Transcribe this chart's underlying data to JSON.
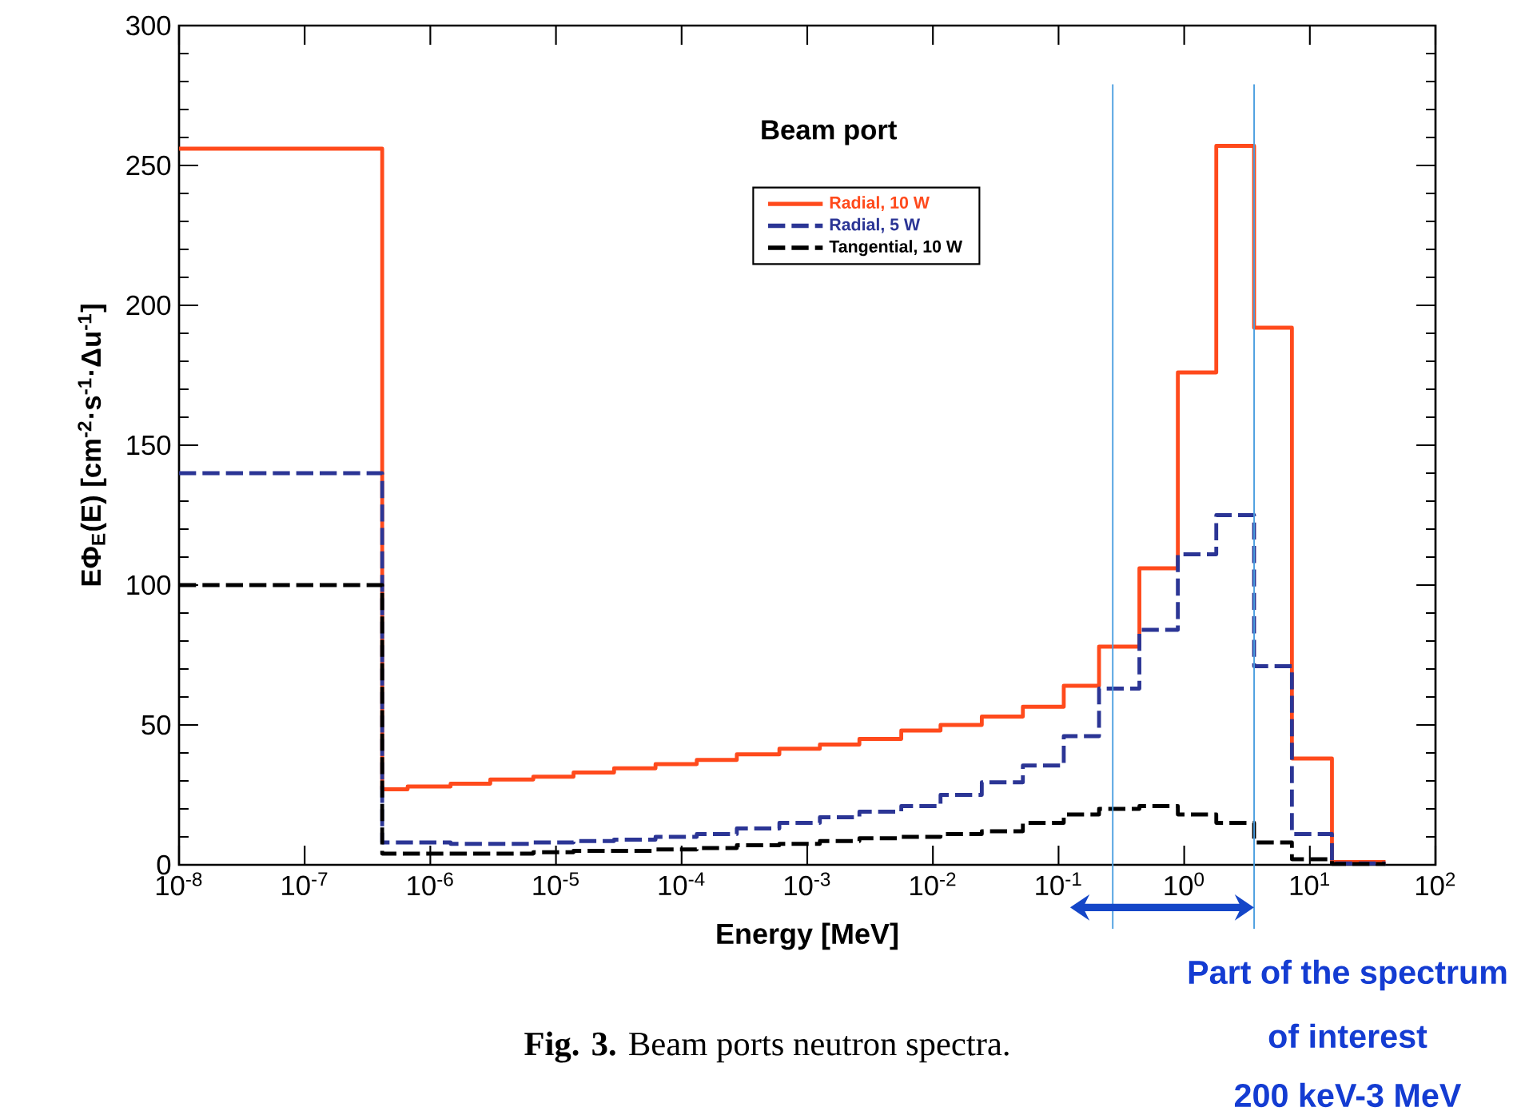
{
  "chart_data": {
    "type": "histogram",
    "xlabel": "Energy [MeV]",
    "ylabel": "EΦ$_{E}$(E) [cm$^{-2}$·s$^{-1}$·Δu$^{-1}$]",
    "legend_title": "Beam port",
    "log": "x",
    "xlim": [
      1e-08,
      100
    ],
    "xticks": [
      {
        "value": 1e-08,
        "label": "10$^{-8}$"
      },
      {
        "value": 1e-07,
        "label": "10$^{-7}$"
      },
      {
        "value": 1e-06,
        "label": "10$^{-6}$"
      },
      {
        "value": 1e-05,
        "label": "10$^{-5}$"
      },
      {
        "value": 0.0001,
        "label": "10$^{-4}$"
      },
      {
        "value": 0.001,
        "label": "10$^{-3}$"
      },
      {
        "value": 0.01,
        "label": "10$^{-2}$"
      },
      {
        "value": 0.1,
        "label": "10$^{-1}$"
      },
      {
        "value": 1,
        "label": "10$^{0}$"
      },
      {
        "value": 10,
        "label": "10$^{1}$"
      },
      {
        "value": 100,
        "label": "10$^{2}$"
      }
    ],
    "ylim": [
      0,
      300
    ],
    "yticks": [
      0,
      50,
      100,
      150,
      200,
      250,
      300
    ],
    "bins": [
      1e-08,
      4.14e-07,
      6.6e-07,
      1.45e-06,
      3e-06,
      6.6e-06,
      1.38e-05,
      2.9e-05,
      6.2e-05,
      0.000132,
      0.000275,
      0.0006,
      0.00126,
      0.0026,
      0.0056,
      0.0115,
      0.0245,
      0.052,
      0.11,
      0.21,
      0.44,
      0.89,
      1.8,
      3.6,
      7.2,
      15,
      40
    ],
    "series": [
      {
        "name": "Radial, 10 W",
        "color": "#ff4a1c",
        "line_style": "solid",
        "values": [
          256,
          27,
          28,
          29,
          30.5,
          31.5,
          33,
          34.5,
          36,
          37.5,
          39.5,
          41.5,
          43,
          45,
          48,
          50,
          53,
          56.5,
          64,
          78,
          106,
          176,
          257,
          192,
          38,
          1
        ]
      },
      {
        "name": "Radial, 5 W",
        "color": "#2b3595",
        "line_style": "dashed",
        "values": [
          140,
          8,
          8,
          7.5,
          7.5,
          8,
          8.5,
          9,
          10,
          11,
          13,
          15,
          17,
          19,
          21,
          25,
          29.5,
          35.5,
          46,
          63,
          84,
          111,
          125,
          71,
          11,
          0.5
        ]
      },
      {
        "name": "Tangential, 10 W",
        "color": "#000000",
        "line_style": "dashed",
        "values": [
          100,
          4,
          4,
          4,
          4,
          4.5,
          5,
          5,
          5.5,
          6,
          7,
          7.5,
          8.5,
          9.5,
          10,
          11,
          12,
          15,
          18,
          20,
          21,
          18,
          15,
          8,
          2,
          0.3
        ]
      }
    ],
    "ref_lines": [
      {
        "axis": "x",
        "value": 0.27,
        "color": "#4a9ee0"
      },
      {
        "axis": "x",
        "value": 3.6,
        "color": "#4a9ee0"
      }
    ],
    "legend": "top",
    "annotations": [
      "**Fig. 3.** Beam ports neutron spectra.",
      "Part of the spectrum",
      "of interest",
      "200 keV-3 MeV"
    ]
  }
}
